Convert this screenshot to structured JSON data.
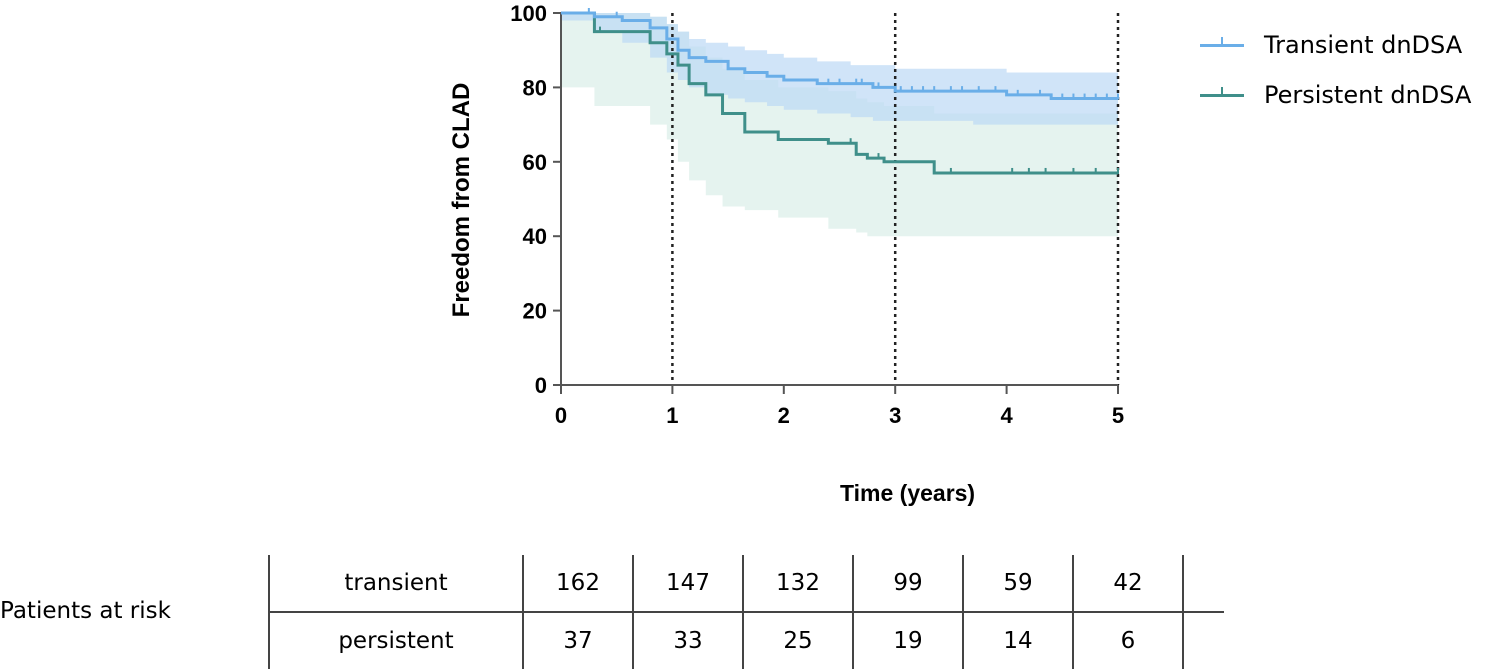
{
  "chart_data": {
    "type": "line",
    "subtype": "kaplan-meier",
    "ylabel": "Freedom from CLAD",
    "xlabel": "Time (years)",
    "xlim": [
      0,
      5
    ],
    "ylim": [
      0,
      100
    ],
    "xticks": [
      0,
      1,
      2,
      3,
      4,
      5
    ],
    "yticks": [
      0,
      20,
      40,
      60,
      80,
      100
    ],
    "reference_lines_x": [
      1,
      3,
      5
    ],
    "legend_position": "top-right",
    "series": [
      {
        "name": "Transient dnDSA",
        "color": "#6aaee8",
        "band_color": "#bcd9f5",
        "step_x": [
          0,
          0.3,
          0.55,
          0.8,
          0.95,
          1.05,
          1.15,
          1.3,
          1.5,
          1.65,
          1.85,
          2.0,
          2.3,
          2.6,
          2.8,
          3.0,
          3.4,
          3.7,
          4.0,
          4.4,
          5.0
        ],
        "step_y": [
          100,
          99,
          98,
          96,
          93,
          90,
          88,
          87,
          85,
          84,
          83,
          82,
          81,
          81,
          80,
          79,
          79,
          79,
          78,
          77,
          77
        ],
        "ci_lower": [
          100,
          98,
          95,
          92,
          88,
          84,
          82,
          80,
          78,
          77,
          76,
          75,
          74,
          73,
          72,
          71,
          71,
          71,
          70,
          70,
          70
        ],
        "ci_upper": [
          100,
          100,
          100,
          99,
          97,
          95,
          93,
          92,
          91,
          90,
          89,
          88,
          87,
          86,
          86,
          85,
          85,
          85,
          84,
          84,
          84
        ],
        "censor_x": [
          0.25,
          0.5,
          2.4,
          2.5,
          2.65,
          2.7,
          2.85,
          3.05,
          3.15,
          3.25,
          3.35,
          3.5,
          3.6,
          3.75,
          3.9,
          4.1,
          4.3,
          4.5,
          4.6,
          4.7,
          4.8,
          4.9,
          5.0
        ]
      },
      {
        "name": "Persistent dnDSA",
        "color": "#3f8f8a",
        "band_color": "#d3ebe5",
        "step_x": [
          0,
          0.3,
          0.8,
          0.95,
          1.05,
          1.15,
          1.3,
          1.45,
          1.65,
          1.95,
          2.4,
          2.65,
          2.75,
          2.9,
          3.35,
          5.0
        ],
        "step_y": [
          100,
          95,
          92,
          89,
          86,
          81,
          78,
          73,
          68,
          66,
          65,
          62,
          61,
          60,
          57,
          57
        ],
        "ci_lower": [
          100,
          80,
          75,
          70,
          66,
          60,
          55,
          51,
          48,
          47,
          45,
          42,
          41,
          40,
          40,
          40
        ],
        "ci_upper": [
          100,
          100,
          99,
          97,
          95,
          91,
          88,
          85,
          82,
          80,
          79,
          77,
          76,
          75,
          73,
          73
        ],
        "censor_x": [
          0.35,
          2.6,
          2.85,
          3.5,
          4.05,
          4.2,
          4.35,
          4.6,
          4.8,
          5.0
        ]
      }
    ]
  },
  "risk_table": {
    "label": "Patients at risk",
    "rows": [
      {
        "group": "transient",
        "values": [
          "162",
          "147",
          "132",
          "99",
          "59",
          "42"
        ]
      },
      {
        "group": "persistent",
        "values": [
          "37",
          "33",
          "25",
          "19",
          "14",
          "6"
        ]
      }
    ]
  }
}
